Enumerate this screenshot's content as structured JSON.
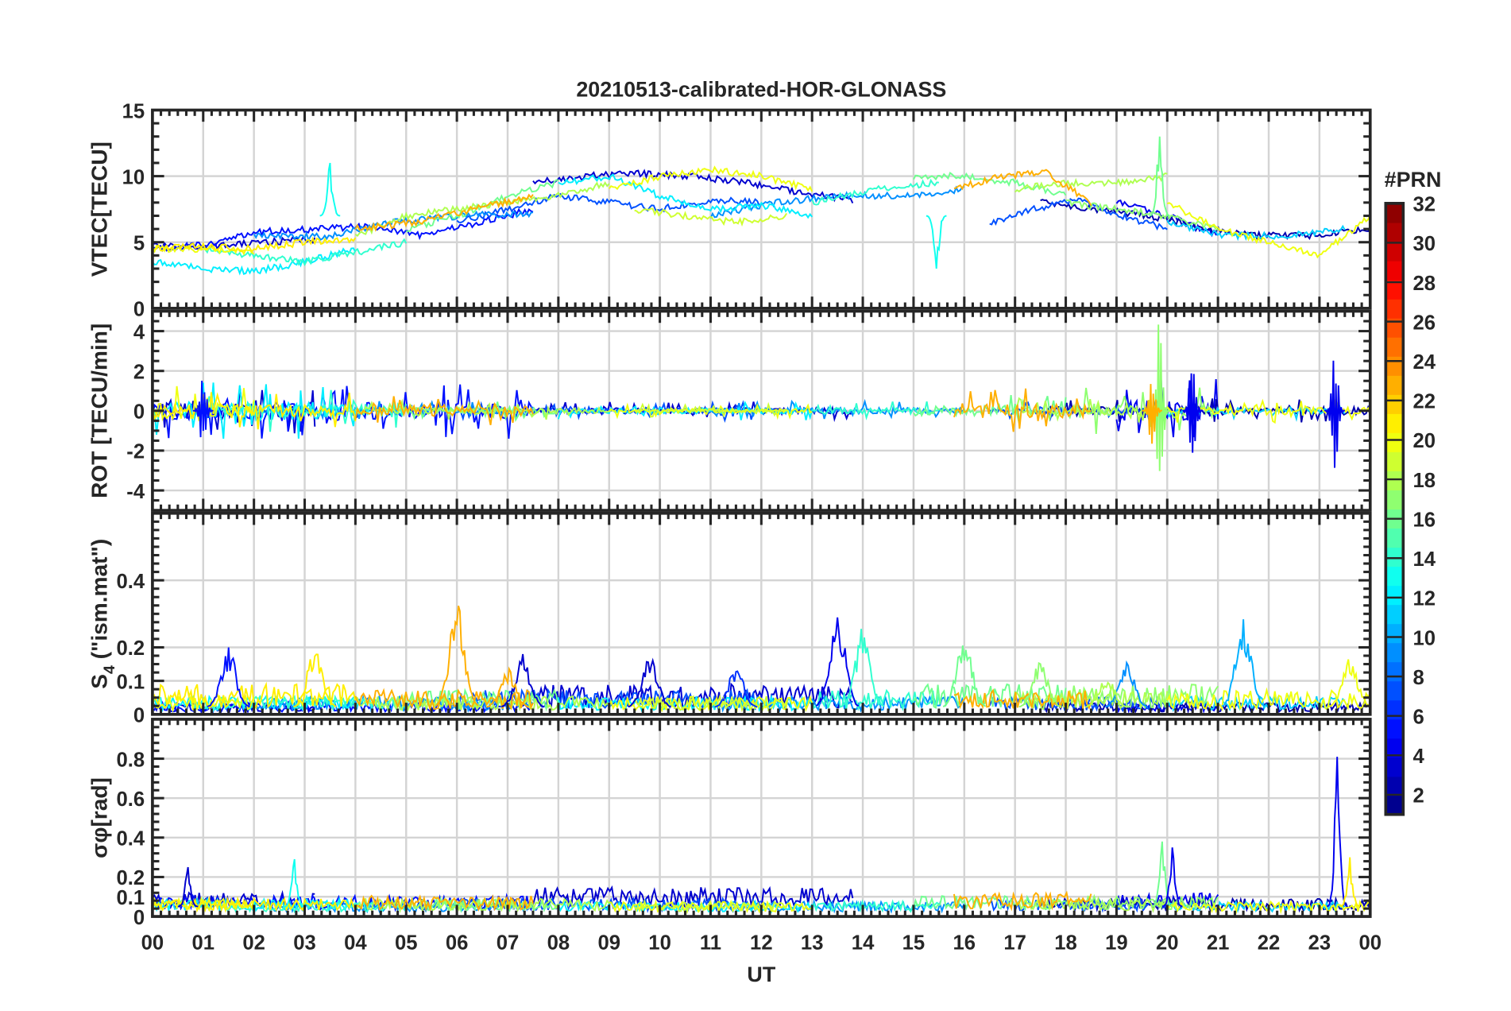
{
  "chart_data": {
    "type": "line",
    "title": "20210513-calibrated-HOR-GLONASS",
    "xlabel": "UT",
    "xlim": [
      0,
      24
    ],
    "x_tick_labels": [
      "00",
      "01",
      "02",
      "03",
      "04",
      "05",
      "06",
      "07",
      "08",
      "09",
      "10",
      "11",
      "12",
      "13",
      "14",
      "15",
      "16",
      "17",
      "18",
      "19",
      "20",
      "21",
      "22",
      "23",
      "00"
    ],
    "grid": true,
    "panels": [
      {
        "id": "vtec",
        "ylabel": "VTEC[TECU]",
        "ylim": [
          0,
          15
        ],
        "yticks": [
          0,
          5,
          10,
          15
        ],
        "ytick_labels": [
          "0",
          "5",
          "10",
          "15"
        ]
      },
      {
        "id": "rot",
        "ylabel": "ROT [TECU/min]",
        "ylim": [
          -5,
          5
        ],
        "yticks": [
          -4,
          -2,
          0,
          2,
          4
        ],
        "ytick_labels": [
          "-4",
          "-2",
          "0",
          "2",
          "4"
        ]
      },
      {
        "id": "s4",
        "ylabel": "S4 (\"ism.mat\")",
        "ylabel_main": "S",
        "ylabel_sub": "4",
        "ylabel_rest": " (\"ism.mat\")",
        "ylim": [
          0,
          0.6
        ],
        "yticks": [
          0,
          0.1,
          0.2,
          0.4
        ],
        "ytick_labels": [
          "0",
          "0.1",
          "0.2",
          "0.4"
        ]
      },
      {
        "id": "sigma",
        "ylabel": "σφ[rad]",
        "ylabel_main": "σ",
        "ylabel_sub": "φ",
        "ylabel_rest": "[rad]",
        "ylim": [
          0,
          1
        ],
        "yticks": [
          0,
          0.1,
          0.2,
          0.4,
          0.6,
          0.8
        ],
        "ytick_labels": [
          "0",
          "0.1",
          "0.2",
          "0.4",
          "0.6",
          "0.8"
        ]
      }
    ],
    "colorbar": {
      "label": "#PRN",
      "clim": [
        1,
        32
      ],
      "ticks": [
        2,
        4,
        6,
        8,
        10,
        12,
        14,
        16,
        18,
        20,
        22,
        24,
        26,
        28,
        30,
        32
      ],
      "tick_labels": [
        "2",
        "4",
        "6",
        "8",
        "10",
        "12",
        "14",
        "16",
        "18",
        "20",
        "22",
        "24",
        "26",
        "28",
        "30",
        "32"
      ],
      "colormap": "jet",
      "levels": 32
    },
    "series": [
      {
        "prn": 3,
        "t": [
          0,
          3.2
        ],
        "vtec": [
          4.8,
          4.6,
          5.0,
          5.2
        ],
        "rot_amp": 0.8,
        "s4": 0.02,
        "sigma": 0.08
      },
      {
        "prn": 3,
        "t": [
          7.5,
          13.8
        ],
        "vtec": [
          9.5,
          10.0,
          10.2,
          10.0,
          9.5,
          8.8,
          8.2
        ],
        "rot_amp": 0.3,
        "s4": 0.05,
        "sigma": 0.1
      },
      {
        "prn": 5,
        "t": [
          0,
          7.5
        ],
        "vtec": [
          4.5,
          4.8,
          5.8,
          6.0,
          6.2,
          5.5,
          6.5,
          7.5
        ],
        "rot_amp": 0.9,
        "s4": 0.02,
        "sigma": 0.07
      },
      {
        "prn": 4,
        "t": [
          19,
          21
        ],
        "vtec": [
          8.0,
          7.0,
          5.5
        ],
        "rot_amp": 1.0,
        "s4": 0.02,
        "sigma": 0.08
      },
      {
        "prn": 2,
        "t": [
          17.5,
          24
        ],
        "vtec": [
          8.0,
          7.5,
          7.0,
          6.0,
          5.5,
          5.5,
          6.0
        ],
        "rot_amp": 0.4,
        "s4": 0.02,
        "sigma": 0.06
      },
      {
        "prn": 7,
        "t": [
          6,
          12
        ],
        "vtec": [
          6.5,
          7.5,
          8.5,
          8.0,
          7.5,
          8.2,
          8.0
        ],
        "rot_amp": 0.3,
        "s4": 0.04,
        "sigma": 0.06
      },
      {
        "prn": 7,
        "t": [
          16.5,
          20
        ],
        "vtec": [
          6.5,
          7.5,
          8.2,
          7.0,
          6.0
        ],
        "rot_amp": 0.3,
        "s4": 0.03,
        "sigma": 0.06
      },
      {
        "prn": 9,
        "t": [
          2,
          7.5
        ],
        "vtec": [
          5.5,
          5.4,
          6.5,
          7.0,
          7.2
        ],
        "rot_amp": 0.3,
        "s4": 0.03,
        "sigma": 0.05
      },
      {
        "prn": 9,
        "t": [
          11,
          16
        ],
        "vtec": [
          7.0,
          8.0,
          8.5,
          8.5,
          9.0
        ],
        "rot_amp": 0.3,
        "s4": 0.03,
        "sigma": 0.05
      },
      {
        "prn": 12,
        "t": [
          0,
          4
        ],
        "vtec": [
          3.5,
          3.0,
          2.8,
          3.5,
          4.5
        ],
        "rot_amp": 0.9,
        "s4": 0.03,
        "sigma": 0.06
      },
      {
        "prn": 12,
        "t": [
          8,
          13
        ],
        "vtec": [
          9.5,
          10.0,
          8.5,
          7.5,
          7.8,
          7.0
        ],
        "rot_amp": 0.3,
        "s4": 0.03,
        "sigma": 0.05
      },
      {
        "prn": 11,
        "t": [
          20,
          23.5
        ],
        "vtec": [
          6.5,
          5.5,
          5.5,
          6.0
        ],
        "rot_amp": 0.3,
        "s4": 0.03,
        "sigma": 0.05
      },
      {
        "prn": 14,
        "t": [
          1,
          5
        ],
        "vtec": [
          4.5,
          4.0,
          3.5,
          4.2,
          5.0
        ],
        "rot_amp": 0.7,
        "s4": 0.03,
        "sigma": 0.05
      },
      {
        "prn": 14,
        "t": [
          13,
          15.5
        ],
        "vtec": [
          8.0,
          9.0,
          9.5
        ],
        "rot_amp": 0.3,
        "s4": 0.04,
        "sigma": 0.05
      },
      {
        "prn": 16,
        "t": [
          5,
          8
        ],
        "vtec": [
          6.0,
          7.0,
          8.5,
          9.5
        ],
        "rot_amp": 0.3,
        "s4": 0.04,
        "sigma": 0.06
      },
      {
        "prn": 16,
        "t": [
          15,
          18
        ],
        "vtec": [
          10.0,
          10.0,
          9.5,
          8.5
        ],
        "rot_amp": 0.5,
        "s4": 0.05,
        "sigma": 0.07
      },
      {
        "prn": 17,
        "t": [
          18,
          21
        ],
        "vtec": [
          8.0,
          7.5,
          7.0,
          6.0
        ],
        "rot_amp": 0.8,
        "s4": 0.05,
        "sigma": 0.07
      },
      {
        "prn": 18,
        "t": [
          4,
          9
        ],
        "vtec": [
          5.5,
          7.0,
          7.5,
          8.0,
          8.5,
          9.5
        ],
        "rot_amp": 0.3,
        "s4": 0.03,
        "sigma": 0.06
      },
      {
        "prn": 18,
        "t": [
          17,
          20
        ],
        "vtec": [
          9.0,
          9.5,
          9.5,
          10.0
        ],
        "rot_amp": 0.4,
        "s4": 0.04,
        "sigma": 0.06
      },
      {
        "prn": 20,
        "t": [
          0,
          2
        ],
        "vtec": [
          4.5,
          4.5,
          4.3
        ],
        "rot_amp": 0.8,
        "s4": 0.03,
        "sigma": 0.06
      },
      {
        "prn": 20,
        "t": [
          9,
          13
        ],
        "vtec": [
          9.0,
          10.0,
          10.5,
          10.0,
          9.0
        ],
        "rot_amp": 0.2,
        "s4": 0.03,
        "sigma": 0.05
      },
      {
        "prn": 20,
        "t": [
          20,
          24
        ],
        "vtec": [
          8.0,
          6.0,
          5.0,
          4.0,
          7.0
        ],
        "rot_amp": 0.4,
        "s4": 0.04,
        "sigma": 0.05
      },
      {
        "prn": 19,
        "t": [
          9.5,
          12.5
        ],
        "vtec": [
          7.5,
          7.0,
          6.5,
          7.0
        ],
        "rot_amp": 0.2,
        "s4": 0.03,
        "sigma": 0.05
      },
      {
        "prn": 21,
        "t": [
          0,
          4
        ],
        "vtec": [
          4.5,
          4.7,
          4.5,
          5.0,
          5.2
        ],
        "rot_amp": 0.6,
        "s4": 0.05,
        "sigma": 0.06
      },
      {
        "prn": 23,
        "t": [
          4,
          7.5
        ],
        "vtec": [
          6.0,
          6.5,
          7.5,
          8.5
        ],
        "rot_amp": 0.5,
        "s4": 0.04,
        "sigma": 0.07
      },
      {
        "prn": 23,
        "t": [
          15.8,
          18.5
        ],
        "vtec": [
          9.0,
          10.0,
          10.3,
          8.0
        ],
        "rot_amp": 0.7,
        "s4": 0.04,
        "sigma": 0.08
      }
    ],
    "events": {
      "vtec_spikes": [
        {
          "prn": 13,
          "t": 3.5,
          "peak": 11.0
        },
        {
          "prn": 16,
          "t": 19.85,
          "peak": 13.0
        },
        {
          "prn": 13,
          "t": 15.45,
          "peak": 3.0
        }
      ],
      "rot_bursts": [
        {
          "prn": 17,
          "t": 19.85,
          "amp": 4.8
        },
        {
          "prn": 4,
          "t": 23.3,
          "amp": 3.2
        },
        {
          "prn": 5,
          "t": 1.0,
          "amp": 2.0
        },
        {
          "prn": 4,
          "t": 20.5,
          "amp": 2.8
        },
        {
          "prn": 23,
          "t": 19.7,
          "amp": 2.3
        }
      ],
      "s4_peaks": [
        {
          "prn": 5,
          "t": 1.5,
          "peak": 0.2
        },
        {
          "prn": 23,
          "t": 6.0,
          "peak": 0.34
        },
        {
          "prn": 3,
          "t": 7.3,
          "peak": 0.18
        },
        {
          "prn": 4,
          "t": 13.5,
          "peak": 0.32
        },
        {
          "prn": 14,
          "t": 14.0,
          "peak": 0.26
        },
        {
          "prn": 16,
          "t": 16.0,
          "peak": 0.24
        },
        {
          "prn": 10,
          "t": 21.5,
          "peak": 0.29
        },
        {
          "prn": 9,
          "t": 19.2,
          "peak": 0.16
        },
        {
          "prn": 21,
          "t": 3.2,
          "peak": 0.2
        },
        {
          "prn": 20,
          "t": 23.6,
          "peak": 0.18
        },
        {
          "prn": 3,
          "t": 9.8,
          "peak": 0.19
        },
        {
          "prn": 17,
          "t": 17.5,
          "peak": 0.16
        },
        {
          "prn": 6,
          "t": 11.5,
          "peak": 0.15
        },
        {
          "prn": 23,
          "t": 7.0,
          "peak": 0.14
        },
        {
          "prn": 18,
          "t": 18.8,
          "peak": 0.12
        }
      ],
      "sigma_peaks": [
        {
          "prn": 4,
          "t": 23.35,
          "peak": 0.81
        },
        {
          "prn": 16,
          "t": 19.9,
          "peak": 0.38
        },
        {
          "prn": 4,
          "t": 20.1,
          "peak": 0.35
        },
        {
          "prn": 13,
          "t": 2.8,
          "peak": 0.29
        },
        {
          "prn": 3,
          "t": 0.7,
          "peak": 0.25
        },
        {
          "prn": 21,
          "t": 23.6,
          "peak": 0.3
        }
      ]
    }
  }
}
